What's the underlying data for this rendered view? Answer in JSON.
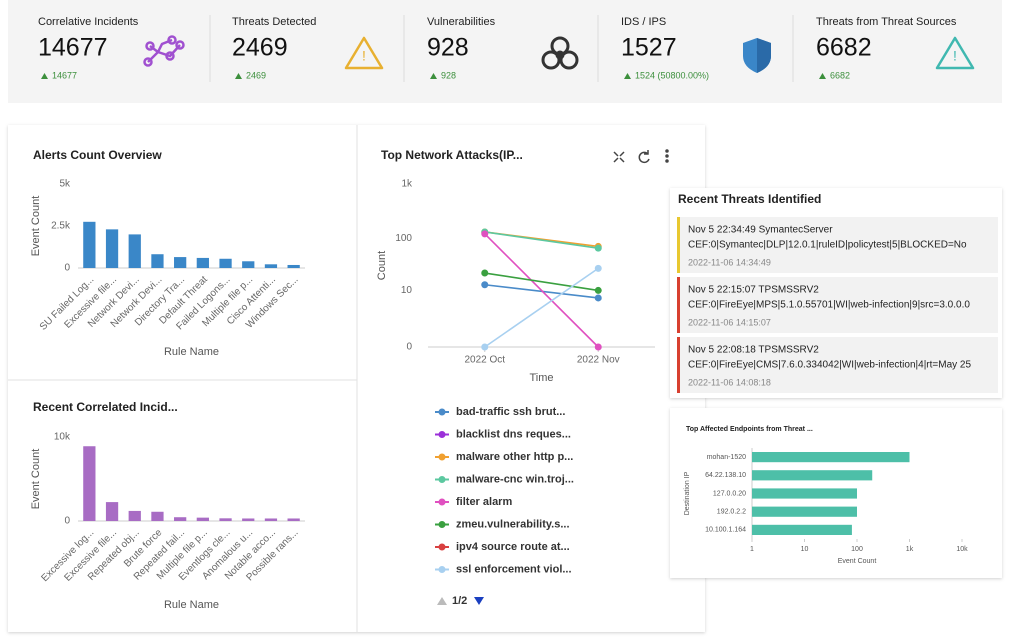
{
  "kpis": [
    {
      "title": "Correlative Incidents",
      "value": 14677,
      "delta": "14677"
    },
    {
      "title": "Threats Detected",
      "value": 2469,
      "delta": "2469"
    },
    {
      "title": "Vulnerabilities",
      "value": 928,
      "delta": "928"
    },
    {
      "title": "IDS / IPS",
      "value": 1527,
      "delta": "1524 (50800.00%)"
    },
    {
      "title": "Threats from Threat Sources",
      "value": 6682,
      "delta": "6682"
    }
  ],
  "chart_data": [
    {
      "type": "bar",
      "title": "Alerts Count Overview",
      "y_label": "Event Count",
      "x_label": "Rule Name",
      "color": "#3a87c8",
      "categories": [
        "SU Failed Log...",
        "Excessive file...",
        "Network Devi...",
        "Network Devi...",
        "Directory Tra...",
        "Default Threat",
        "Failed Logons...",
        "Multiple file p...",
        "Cisco Attenti...",
        "Windows Sec..."
      ],
      "values": [
        2750,
        2300,
        2000,
        820,
        650,
        600,
        550,
        400,
        220,
        180
      ],
      "ylim": [
        0,
        5000
      ],
      "yticks": [
        0,
        {
          "value": 2500,
          "label": "2.5k"
        },
        {
          "value": 5000,
          "label": "5k"
        }
      ],
      "grid": false
    },
    {
      "type": "bar",
      "title": "Recent Correlated Incid...",
      "y_label": "Event Count",
      "x_label": "Rule Name",
      "color": "#a86cc4",
      "categories": [
        "Excessive log...",
        "Excessive file...",
        "Repeated obj...",
        "Brute force",
        "Repeated fail...",
        "Multiple file p...",
        "Eventlogs cle...",
        "Anomalous u...",
        "Notable acco...",
        "Possible rans..."
      ],
      "values": [
        8900,
        2250,
        1200,
        1100,
        450,
        400,
        320,
        300,
        300,
        300
      ],
      "ylim": [
        0,
        10000
      ],
      "yticks": [
        0,
        {
          "value": 10000,
          "label": "10k"
        }
      ],
      "grid": false
    },
    {
      "type": "line",
      "title": "Top Network Attacks(IP...",
      "y_label": "Count",
      "x_label": "Time",
      "yscale": "symlog",
      "categories": [
        "2022 Oct",
        "2022 Nov"
      ],
      "series": [
        {
          "name": "bad-traffic ssh brut...",
          "color": "#4a8bc9",
          "values": [
            13,
            7
          ]
        },
        {
          "name": "blacklist dns reques...",
          "color": "#9b30d9",
          "values": [
            null,
            null
          ]
        },
        {
          "name": "malware other http p...",
          "color": "#f0a030",
          "values": [
            130,
            70
          ]
        },
        {
          "name": "malware-cnc win.troj...",
          "color": "#5cc8a0",
          "values": [
            130,
            65
          ]
        },
        {
          "name": "filter alarm",
          "color": "#e050c0",
          "values": [
            120,
            0
          ]
        },
        {
          "name": "zmeu.vulnerability.s...",
          "color": "#3aa040",
          "values": [
            22,
            10
          ]
        },
        {
          "name": "ipv4 source route at...",
          "color": "#d84040",
          "values": [
            null,
            null
          ]
        },
        {
          "name": "ssl enforcement viol...",
          "color": "#a8d0f0",
          "values": [
            0,
            27
          ]
        }
      ],
      "ylim": [
        0,
        1000
      ],
      "yticks": [
        0,
        10,
        100,
        {
          "value": 1000,
          "label": "1k"
        }
      ],
      "grid": false,
      "legend_page": "1/2"
    },
    {
      "type": "hbar",
      "title": "Top Affected Endpoints from Threat ...",
      "y_label": "Destination IP",
      "x_label": "Event Count",
      "color": "#4dbfa8",
      "xscale": "log",
      "categories": [
        "mohan-1520",
        "64.22.138.10",
        "127.0.0.20",
        "192.0.2.2",
        "10.100.1.164"
      ],
      "values": [
        1000,
        195,
        100,
        100,
        80
      ],
      "xlim": [
        1,
        10000
      ],
      "xticks": [
        1,
        10,
        100,
        {
          "value": 1000,
          "label": "1k"
        },
        {
          "value": 10000,
          "label": "10k"
        }
      ],
      "grid": false
    }
  ],
  "recent_threats": {
    "title": "Recent Threats Identified",
    "items": [
      {
        "header": "Nov 5 22:34:49 SymantecServer",
        "message": "CEF:0|Symantec|DLP|12.0.1|ruleID|policytest|5|BLOCKED=No",
        "time": "2022-11-06 14:34:49",
        "color": "#e8c830"
      },
      {
        "header": "Nov 5 22:15:07 TPSMSSRV2",
        "message": "CEF:0|FireEye|MPS|5.1.0.55701|WI|web-infection|9|src=3.0.0.0",
        "time": "2022-11-06 14:15:07",
        "color": "#d84030"
      },
      {
        "header": "Nov 5 22:08:18 TPSMSSRV2",
        "message": "CEF:0|FireEye|CMS|7.6.0.334042|WI|web-infection|4|rt=May 25",
        "time": "2022-11-06 14:08:18",
        "color": "#d84030"
      }
    ]
  }
}
